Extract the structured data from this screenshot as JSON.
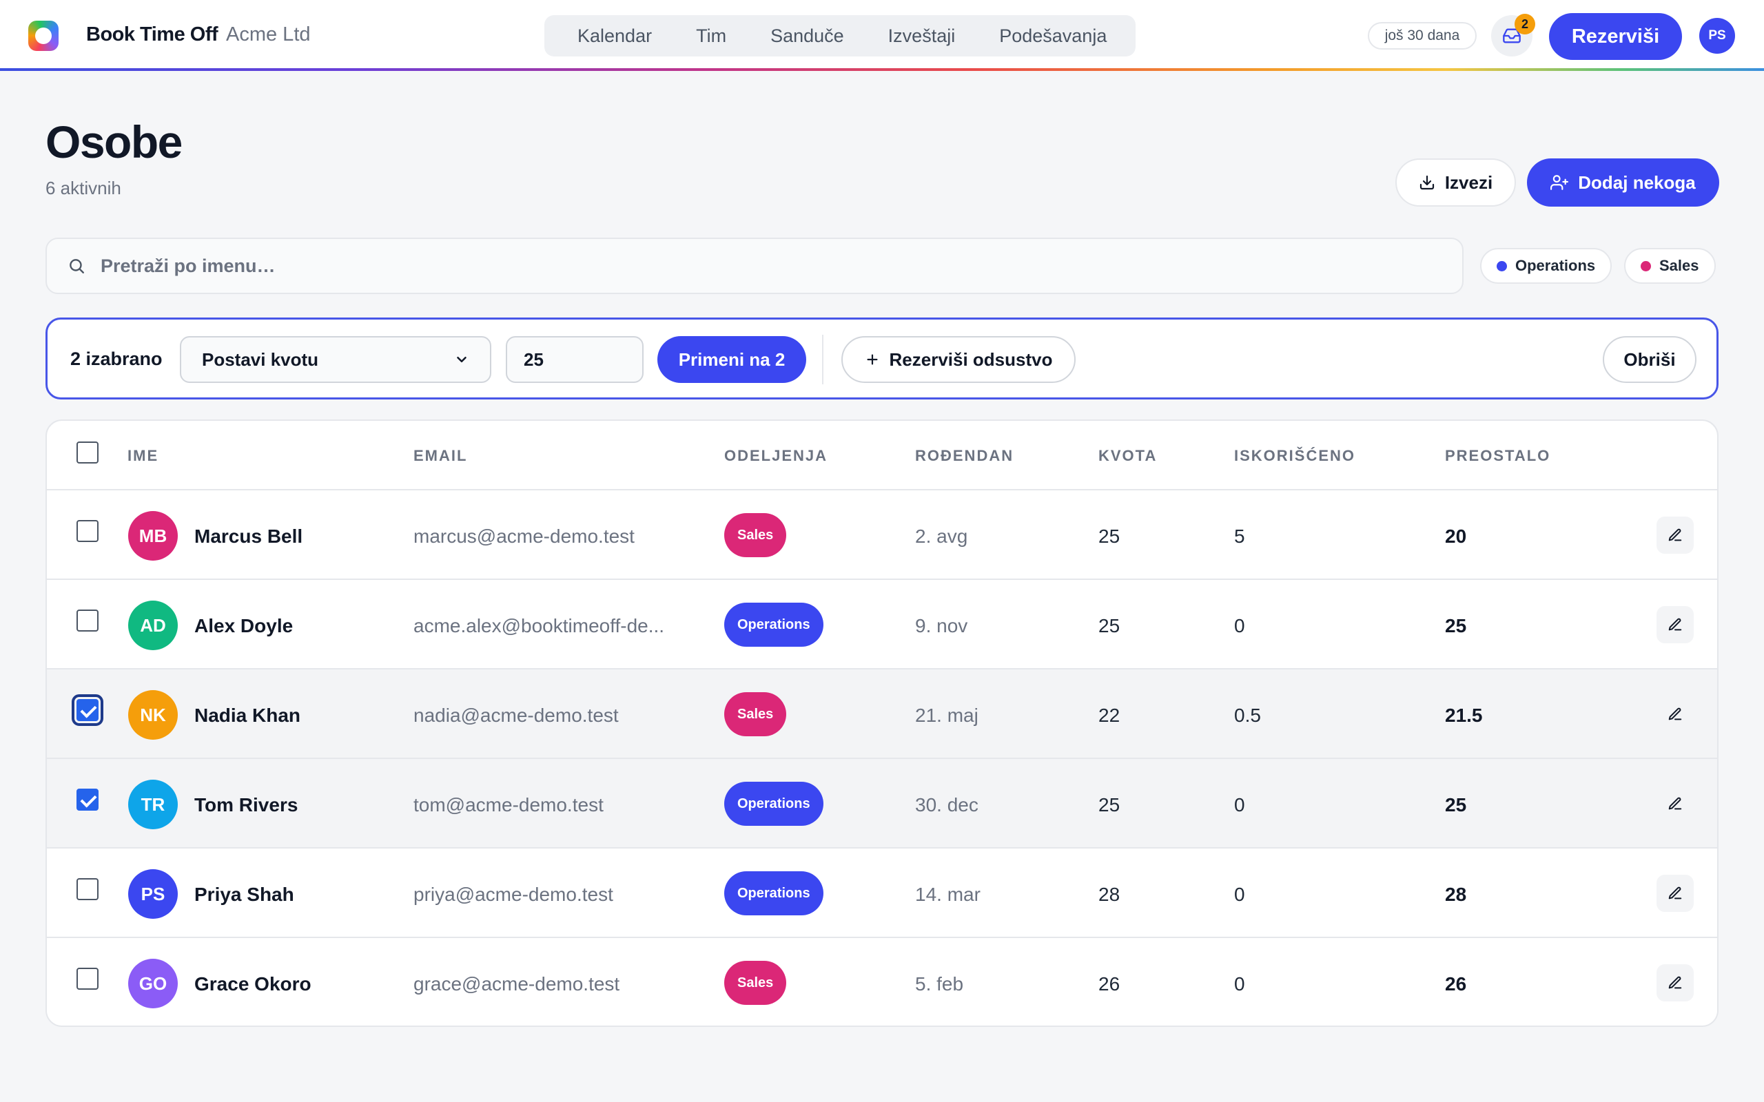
{
  "header": {
    "brand": "Book Time Off",
    "company": "Acme Ltd",
    "nav": [
      "Kalendar",
      "Tim",
      "Sanduče",
      "Izveštaji",
      "Podešavanja"
    ],
    "trial": "još 30 dana",
    "inbox_count": "2",
    "book_label": "Rezerviši",
    "user_initials": "PS"
  },
  "page": {
    "title": "Osobe",
    "subtitle": "6 aktivnih",
    "export_label": "Izvezi",
    "add_label": "Dodaj nekoga"
  },
  "search": {
    "placeholder": "Pretraži po imenu…"
  },
  "filters": [
    {
      "label": "Operations",
      "color": "#3b47f0"
    },
    {
      "label": "Sales",
      "color": "#db2777"
    }
  ],
  "bulk": {
    "count_label": "2 izabrano",
    "action_select": "Postavi kvotu",
    "value": "25",
    "apply_label": "Primeni na 2",
    "book_label": "Rezerviši odsustvo",
    "clear_label": "Obriši"
  },
  "table": {
    "columns": [
      "IME",
      "EMAIL",
      "ODELJENJA",
      "ROĐENDAN",
      "KVOTA",
      "ISKORIŠĆENO",
      "PREOSTALO"
    ],
    "rows": [
      {
        "initials": "MB",
        "avatar_color": "#db2777",
        "name": "Marcus Bell",
        "email": "marcus@acme-demo.test",
        "dept": "Sales",
        "dept_color": "#db2777",
        "birthday": "2. avg",
        "quota": "25",
        "used": "5",
        "remaining": "20",
        "selected": false
      },
      {
        "initials": "AD",
        "avatar_color": "#10b981",
        "name": "Alex Doyle",
        "email": "acme.alex@booktimeoff-de...",
        "dept": "Operations",
        "dept_color": "#3b47f0",
        "birthday": "9. nov",
        "quota": "25",
        "used": "0",
        "remaining": "25",
        "selected": false
      },
      {
        "initials": "NK",
        "avatar_color": "#f59e0b",
        "name": "Nadia Khan",
        "email": "nadia@acme-demo.test",
        "dept": "Sales",
        "dept_color": "#db2777",
        "birthday": "21. maj",
        "quota": "22",
        "used": "0.5",
        "remaining": "21.5",
        "selected": true
      },
      {
        "initials": "TR",
        "avatar_color": "#0ea5e9",
        "name": "Tom Rivers",
        "email": "tom@acme-demo.test",
        "dept": "Operations",
        "dept_color": "#3b47f0",
        "birthday": "30. dec",
        "quota": "25",
        "used": "0",
        "remaining": "25",
        "selected": true
      },
      {
        "initials": "PS",
        "avatar_color": "#3b47f0",
        "name": "Priya Shah",
        "email": "priya@acme-demo.test",
        "dept": "Operations",
        "dept_color": "#3b47f0",
        "birthday": "14. mar",
        "quota": "28",
        "used": "0",
        "remaining": "28",
        "selected": false
      },
      {
        "initials": "GO",
        "avatar_color": "#8b5cf6",
        "name": "Grace Okoro",
        "email": "grace@acme-demo.test",
        "dept": "Sales",
        "dept_color": "#db2777",
        "birthday": "5. feb",
        "quota": "26",
        "used": "0",
        "remaining": "26",
        "selected": false
      }
    ]
  }
}
